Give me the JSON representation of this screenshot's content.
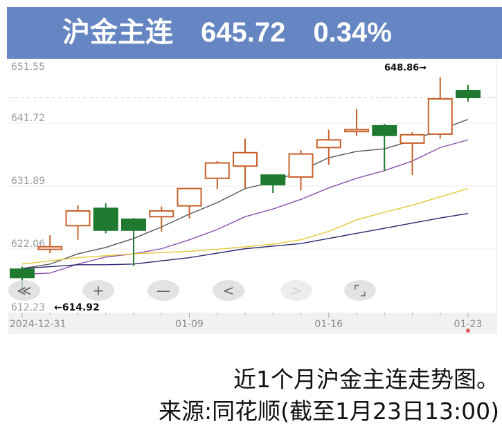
{
  "header": {
    "instrument": "沪金主连",
    "price": "645.72",
    "change_pct": "0.34%"
  },
  "colors": {
    "header_bg": "#6586c3",
    "up": "#c8602a",
    "down": "#1f7a2f",
    "ma1": "#555555",
    "ma2": "#8a4fa8",
    "ma3": "#e6c630",
    "ma4": "#27276e"
  },
  "controls": [
    {
      "name": "scroll-to-start-button",
      "icon": "double-chevron-left-icon",
      "glyph": "≪"
    },
    {
      "name": "zoom-in-button",
      "icon": "plus-icon",
      "glyph": "+"
    },
    {
      "name": "zoom-out-button",
      "icon": "minus-icon",
      "glyph": "—"
    },
    {
      "name": "scroll-left-button",
      "icon": "chevron-left-icon",
      "glyph": "<"
    },
    {
      "name": "scroll-right-button",
      "icon": "chevron-right-icon",
      "glyph": ">"
    },
    {
      "name": "fullscreen-button",
      "icon": "expand-icon",
      "glyph": "⌜⌟"
    }
  ],
  "chart_data": {
    "type": "candlestick",
    "y_ticks": [
      "651.55",
      "641.72",
      "631.89",
      "622.06",
      "612.23"
    ],
    "ylim": [
      612.23,
      651.55
    ],
    "grid": true,
    "current_price_line": 645.72,
    "x_tick_labels": [
      {
        "index": 0,
        "label": "2024-12-31"
      },
      {
        "index": 6,
        "label": "01-09"
      },
      {
        "index": 11,
        "label": "01-16"
      },
      {
        "index": 16,
        "label": "01-23"
      }
    ],
    "annotations": {
      "max": {
        "label": "648.86→",
        "value": 648.86,
        "index": 15
      },
      "min": {
        "label": "←614.92",
        "value": 614.92,
        "index": 0
      }
    },
    "candles": [
      {
        "date": "2024-12-31",
        "open": 618.9,
        "high": 619.3,
        "low": 614.92,
        "close": 617.6
      },
      {
        "date": "01-02",
        "open": 622.0,
        "high": 624.2,
        "low": 621.4,
        "close": 622.4
      },
      {
        "date": "01-03",
        "open": 625.7,
        "high": 628.9,
        "low": 623.5,
        "close": 628.0
      },
      {
        "date": "01-06",
        "open": 628.4,
        "high": 629.2,
        "low": 624.5,
        "close": 625.0
      },
      {
        "date": "01-07",
        "open": 626.7,
        "high": 626.9,
        "low": 619.4,
        "close": 625.0
      },
      {
        "date": "01-08",
        "open": 627.1,
        "high": 628.7,
        "low": 624.8,
        "close": 628.0
      },
      {
        "date": "01-09",
        "open": 628.8,
        "high": 631.5,
        "low": 626.8,
        "close": 631.5
      },
      {
        "date": "01-10",
        "open": 633.1,
        "high": 635.8,
        "low": 631.4,
        "close": 635.5
      },
      {
        "date": "01-13",
        "open": 635.0,
        "high": 639.3,
        "low": 631.5,
        "close": 637.1
      },
      {
        "date": "01-14",
        "open": 633.6,
        "high": 633.7,
        "low": 630.8,
        "close": 632.1
      },
      {
        "date": "01-15",
        "open": 633.3,
        "high": 637.5,
        "low": 631.2,
        "close": 636.9
      },
      {
        "date": "01-16",
        "open": 637.9,
        "high": 640.7,
        "low": 635.2,
        "close": 639.1
      },
      {
        "date": "01-17",
        "open": 640.4,
        "high": 643.9,
        "low": 639.7,
        "close": 640.7
      },
      {
        "date": "01-20",
        "open": 641.3,
        "high": 641.6,
        "low": 634.3,
        "close": 639.8
      },
      {
        "date": "01-21",
        "open": 638.6,
        "high": 640.3,
        "low": 633.6,
        "close": 639.9
      },
      {
        "date": "01-22",
        "open": 640.0,
        "high": 648.86,
        "low": 639.3,
        "close": 645.5
      },
      {
        "date": "01-23",
        "open": 646.8,
        "high": 647.7,
        "low": 645.1,
        "close": 645.72
      }
    ],
    "moving_averages": [
      {
        "color": "#555555",
        "values": [
          619.0,
          619.7,
          621.3,
          622.3,
          623.7,
          625.5,
          627.5,
          629.3,
          631.5,
          632.5,
          634.3,
          636.3,
          637.3,
          637.7,
          639.0,
          640.7,
          642.3
        ]
      },
      {
        "color": "#8a4fa8",
        "values": [
          618.1,
          618.3,
          619.7,
          620.8,
          621.3,
          622.1,
          623.5,
          625.1,
          627.1,
          628.3,
          629.8,
          631.6,
          633.1,
          634.3,
          635.8,
          637.9,
          639.1
        ]
      },
      {
        "color": "#e6c630",
        "values": [
          619.7,
          620.2,
          620.7,
          621.0,
          621.3,
          621.5,
          621.7,
          622.0,
          622.4,
          622.8,
          623.5,
          624.8,
          626.6,
          627.8,
          628.9,
          630.2,
          631.5
        ]
      },
      {
        "color": "#27276e",
        "values": [
          619.0,
          619.3,
          619.6,
          619.6,
          619.7,
          620.2,
          620.7,
          621.4,
          622.1,
          622.5,
          622.9,
          623.7,
          624.5,
          625.3,
          626.1,
          626.9,
          627.6
        ]
      }
    ]
  },
  "caption": {
    "line1": "近1个月沪金主连走势图。",
    "line2": "来源:同花顺(截至1月23日13:00)"
  }
}
